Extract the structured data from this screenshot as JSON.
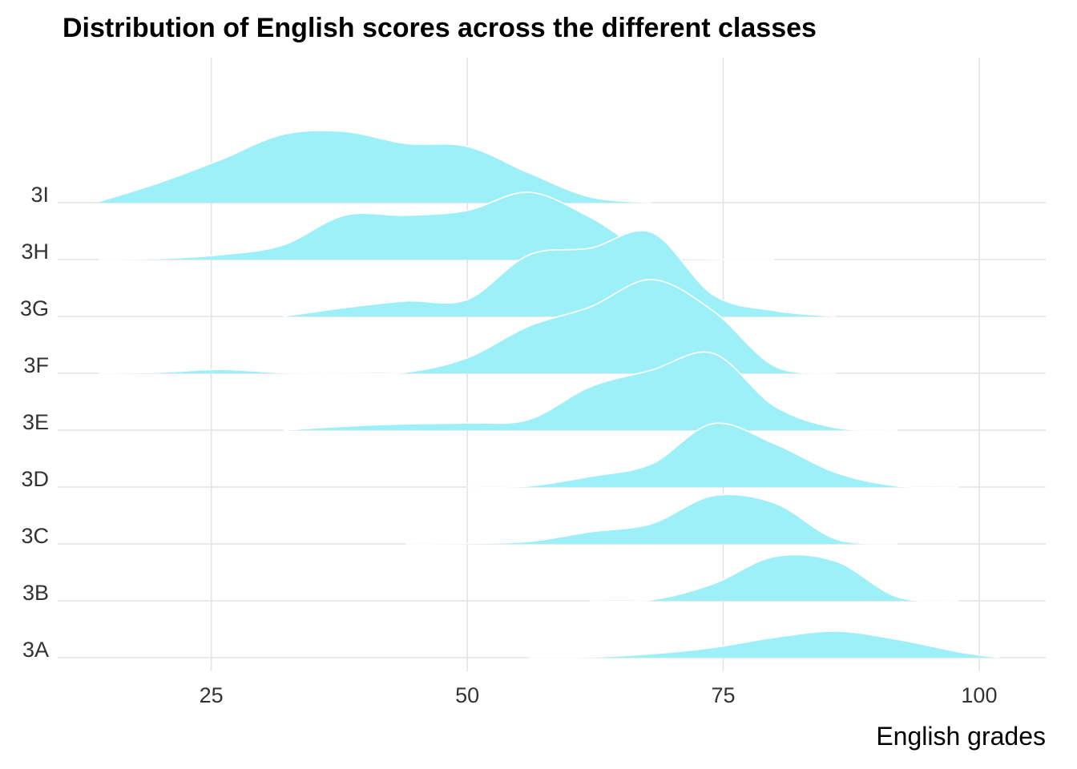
{
  "chart_data": {
    "type": "ridgeline",
    "title": "Distribution of English scores across the different classes",
    "xlabel": "English grades",
    "ylabel": "",
    "xlim": [
      10,
      106.5
    ],
    "x_ticks": [
      25,
      50,
      75,
      100
    ],
    "grid": true,
    "fill_color": "#9DF0F8",
    "outline_color": "#FFFFFF",
    "categories": [
      "3A",
      "3B",
      "3C",
      "3D",
      "3E",
      "3F",
      "3G",
      "3H",
      "3I"
    ],
    "x": [
      14,
      20,
      26,
      32,
      38,
      44,
      50,
      56,
      62,
      68,
      74,
      80,
      86,
      92,
      98,
      102
    ],
    "series": [
      {
        "name": "3A",
        "values": [
          0,
          0,
          0,
          0,
          0,
          0,
          0,
          0,
          0.01,
          0.08,
          0.21,
          0.42,
          0.55,
          0.38,
          0.12,
          0
        ]
      },
      {
        "name": "3B",
        "values": [
          0,
          0,
          0,
          0,
          0,
          0,
          0,
          0,
          0,
          0.02,
          0.35,
          0.92,
          0.82,
          0.08,
          0,
          0
        ]
      },
      {
        "name": "3C",
        "values": [
          0,
          0,
          0,
          0,
          0,
          0,
          0.01,
          0.05,
          0.25,
          0.42,
          1.0,
          0.85,
          0.1,
          0,
          0,
          0
        ]
      },
      {
        "name": "3D",
        "values": [
          0,
          0,
          0,
          0,
          0,
          0,
          0,
          0.02,
          0.22,
          0.48,
          1.32,
          0.9,
          0.3,
          0.02,
          0,
          0
        ]
      },
      {
        "name": "3E",
        "values": [
          0,
          0,
          0,
          0,
          0.08,
          0.13,
          0.15,
          0.22,
          0.9,
          1.25,
          1.6,
          0.5,
          0.05,
          0,
          0,
          0
        ]
      },
      {
        "name": "3F",
        "values": [
          0,
          0.02,
          0.08,
          0.01,
          0,
          0.02,
          0.32,
          0.98,
          1.38,
          1.95,
          1.3,
          0.15,
          0,
          0,
          0,
          0
        ]
      },
      {
        "name": "3G",
        "values": [
          0,
          0,
          0,
          0,
          0.18,
          0.32,
          0.35,
          1.28,
          1.42,
          1.75,
          0.45,
          0.12,
          0,
          0,
          0,
          0
        ]
      },
      {
        "name": "3H",
        "values": [
          0,
          0.02,
          0.1,
          0.3,
          0.92,
          0.92,
          1.02,
          1.4,
          0.88,
          0.12,
          0.01,
          0,
          0,
          0,
          0,
          0
        ]
      },
      {
        "name": "3I",
        "values": [
          0.02,
          0.42,
          0.9,
          1.42,
          1.48,
          1.23,
          1.17,
          0.62,
          0.12,
          0,
          0,
          0,
          0,
          0,
          0,
          0
        ]
      }
    ]
  }
}
